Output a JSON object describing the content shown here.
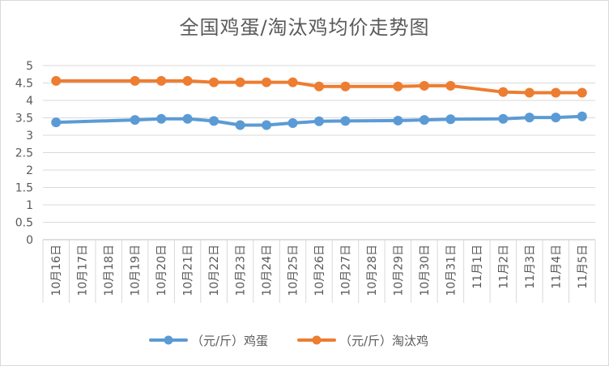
{
  "chart_data": {
    "type": "line",
    "title": "全国鸡蛋/淘汰鸡均价走势图",
    "xlabel": "",
    "ylabel": "",
    "ylim": [
      0,
      5
    ],
    "yticks": [
      "0",
      "0.5",
      "1",
      "1.5",
      "2",
      "2.5",
      "3",
      "3.5",
      "4",
      "4.5",
      "5"
    ],
    "categories": [
      "10月16日",
      "10月17日",
      "10月18日",
      "10月19日",
      "10月20日",
      "10月21日",
      "10月22日",
      "10月23日",
      "10月24日",
      "10月25日",
      "10月26日",
      "10月27日",
      "10月28日",
      "10月29日",
      "10月30日",
      "10月31日",
      "11月1日",
      "11月2日",
      "11月3日",
      "11月4日",
      "11月5日"
    ],
    "grid": true,
    "legend_position": "bottom",
    "series": [
      {
        "name": "（元/斤）鸡蛋",
        "color": "#5b9bd5",
        "values": [
          3.37,
          null,
          null,
          3.44,
          3.47,
          3.47,
          3.41,
          3.29,
          3.29,
          3.35,
          3.4,
          3.41,
          null,
          3.42,
          3.44,
          3.46,
          null,
          3.47,
          3.51,
          3.51,
          3.54
        ]
      },
      {
        "name": "（元/斤）淘汰鸡",
        "color": "#ed7d31",
        "values": [
          4.56,
          null,
          null,
          4.56,
          4.56,
          4.56,
          4.52,
          4.52,
          4.52,
          4.52,
          4.4,
          4.4,
          null,
          4.4,
          4.42,
          4.42,
          null,
          4.24,
          4.22,
          4.22,
          4.22
        ]
      }
    ]
  }
}
